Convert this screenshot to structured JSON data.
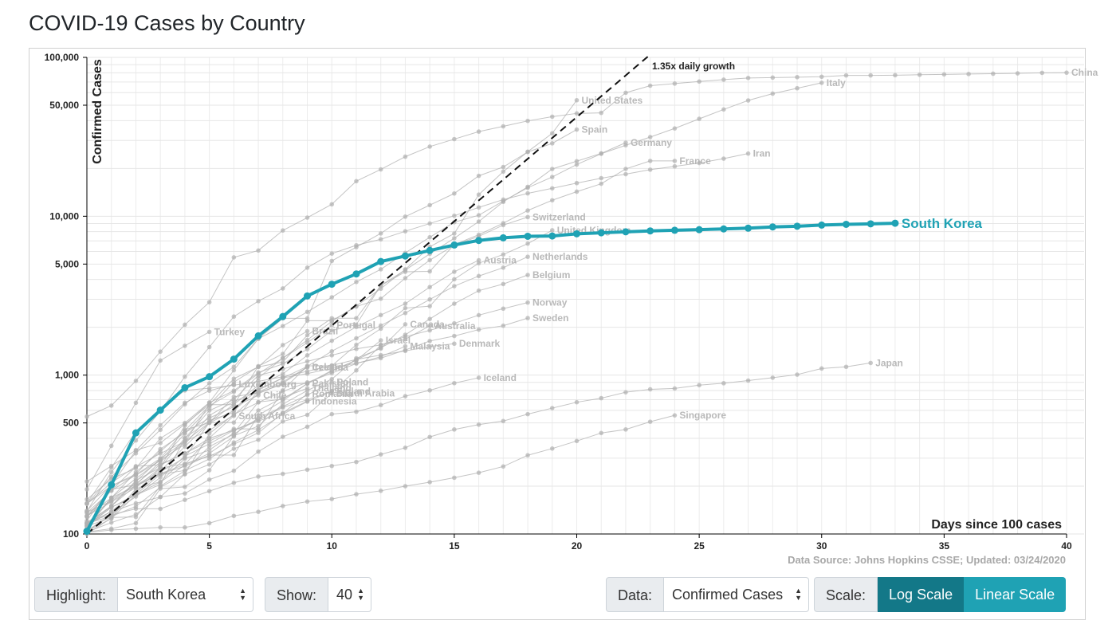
{
  "page": {
    "title": "COVID-19 Cases by Country"
  },
  "chart_data": {
    "type": "line",
    "title": "",
    "xlabel": "Days since 100 cases",
    "ylabel": "Confirmed Cases",
    "xlim": [
      0,
      40
    ],
    "ylim": [
      100,
      100000
    ],
    "y_scale": "log",
    "x_ticks": [
      0,
      5,
      10,
      15,
      20,
      25,
      30,
      35,
      40
    ],
    "y_ticks": [
      {
        "value": 100,
        "label": "100"
      },
      {
        "value": 500,
        "label": "500"
      },
      {
        "value": 1000,
        "label": "1,000"
      },
      {
        "value": 5000,
        "label": "5,000"
      },
      {
        "value": 10000,
        "label": "10,000"
      },
      {
        "value": 50000,
        "label": "50,000"
      },
      {
        "value": 100000,
        "label": "100,000"
      }
    ],
    "grid": true,
    "reference_line": {
      "label": "1.35x daily growth",
      "growth_rate": 1.35,
      "start_value": 100
    },
    "source_note": "Data Source: Johns Hopkins CSSE; Updated: 03/24/2020",
    "highlight_color": "#1fa2b4",
    "background_color": "#b0b0b0",
    "highlight": {
      "name": "South Korea",
      "values": [
        104,
        204,
        433,
        602,
        833,
        977,
        1261,
        1766,
        2337,
        3150,
        3736,
        4335,
        5186,
        5621,
        6088,
        6593,
        7041,
        7314,
        7478,
        7513,
        7755,
        7869,
        7979,
        8086,
        8162,
        8236,
        8320,
        8413,
        8565,
        8652,
        8799,
        8897,
        8961,
        9037
      ]
    },
    "series": [
      {
        "name": "China",
        "values": [
          548,
          643,
          920,
          1406,
          2075,
          2877,
          5509,
          6087,
          8141,
          9802,
          11891,
          16630,
          19716,
          23707,
          27440,
          30587,
          34110,
          36814,
          39829,
          42354,
          44386,
          44759,
          59895,
          66358,
          68413,
          70513,
          72434,
          74211,
          74619,
          75077,
          75550,
          77001,
          77022,
          77241,
          77754,
          78166,
          78600,
          78928,
          79356,
          79932,
          80136
        ]
      },
      {
        "name": "Italy",
        "values": [
          155,
          229,
          322,
          453,
          655,
          888,
          1128,
          1694,
          2036,
          2502,
          3089,
          3858,
          4636,
          5883,
          7375,
          9172,
          10149,
          12462,
          15113,
          17660,
          21157,
          24747,
          27980,
          31506,
          35713,
          41035,
          47021,
          53578,
          59138,
          63927,
          69176
        ]
      },
      {
        "name": "United States",
        "values": [
          118,
          149,
          217,
          262,
          402,
          518,
          583,
          959,
          1281,
          1663,
          2179,
          2727,
          3499,
          4632,
          6421,
          7786,
          13680,
          19101,
          25493,
          33276,
          53740
        ]
      },
      {
        "name": "Spain",
        "values": [
          165,
          222,
          259,
          400,
          500,
          673,
          1073,
          1695,
          2277,
          2277,
          5232,
          6391,
          7798,
          9942,
          11748,
          13910,
          17963,
          20410,
          25374,
          28768,
          35136
        ]
      },
      {
        "name": "Germany",
        "values": [
          130,
          159,
          196,
          262,
          482,
          670,
          799,
          1040,
          1176,
          1457,
          1908,
          2078,
          3675,
          4585,
          5795,
          7272,
          9257,
          12327,
          15320,
          19848,
          22213,
          24873,
          29056
        ]
      },
      {
        "name": "France",
        "values": [
          130,
          191,
          204,
          285,
          377,
          653,
          949,
          1126,
          1209,
          1784,
          2281,
          2281,
          3661,
          4469,
          4499,
          6633,
          7652,
          9043,
          10871,
          12612,
          14282,
          16018,
          19856,
          22304,
          22304
        ]
      },
      {
        "name": "Iran",
        "values": [
          139,
          245,
          388,
          593,
          978,
          1501,
          2336,
          2922,
          3513,
          4747,
          5823,
          6566,
          7161,
          8042,
          9000,
          10075,
          11364,
          12729,
          13938,
          14991,
          16169,
          17361,
          18407,
          19644,
          20610,
          21638,
          23049,
          24811
        ]
      },
      {
        "name": "Switzerland",
        "values": [
          214,
          268,
          337,
          374,
          491,
          652,
          652,
          1139,
          1359,
          2200,
          2200,
          2700,
          3028,
          4075,
          5294,
          6575,
          7474,
          8795,
          9877
        ]
      },
      {
        "name": "United Kingdom",
        "values": [
          116,
          164,
          207,
          274,
          322,
          384,
          459,
          459,
          802,
          1144,
          1145,
          1551,
          1960,
          2642,
          2716,
          4014,
          5067,
          5745,
          6726,
          8164
        ]
      },
      {
        "name": "Austria",
        "values": [
          104,
          131,
          182,
          246,
          302,
          504,
          655,
          860,
          1018,
          1332,
          1646,
          2013,
          2388,
          2814,
          3582,
          4474,
          5283
        ]
      },
      {
        "name": "Netherlands",
        "values": [
          128,
          188,
          265,
          321,
          382,
          503,
          503,
          804,
          959,
          1135,
          1413,
          1705,
          2051,
          2460,
          2994,
          3631,
          4204,
          4749,
          5560
        ]
      },
      {
        "name": "Belgium",
        "values": [
          109,
          169,
          200,
          239,
          267,
          314,
          314,
          559,
          689,
          886,
          1058,
          1243,
          1486,
          1795,
          2257,
          2815,
          3401,
          3743,
          4269
        ]
      },
      {
        "name": "Norway",
        "values": [
          113,
          147,
          176,
          205,
          400,
          598,
          702,
          996,
          1090,
          1221,
          1333,
          1463,
          1550,
          1746,
          1914,
          2118,
          2385,
          2621,
          2863
        ]
      },
      {
        "name": "Sweden",
        "values": [
          137,
          161,
          203,
          248,
          355,
          500,
          599,
          814,
          961,
          1022,
          1103,
          1190,
          1279,
          1439,
          1639,
          1763,
          1934,
          2046,
          2286
        ]
      },
      {
        "name": "Canada",
        "values": [
          103,
          108,
          117,
          193,
          198,
          252,
          415,
          478,
          657,
          800,
          943,
          1277,
          1469,
          2088
        ]
      },
      {
        "name": "Australia",
        "values": [
          112,
          127,
          128,
          200,
          250,
          297,
          377,
          452,
          568,
          681,
          791,
          1071,
          1549,
          1682,
          2044
        ]
      },
      {
        "name": "Israel",
        "values": [
          100,
          126,
          193,
          213,
          298,
          337,
          433,
          677,
          705,
          883,
          1071,
          1238,
          1656
        ]
      },
      {
        "name": "Denmark",
        "values": [
          156,
          262,
          442,
          615,
          801,
          827,
          864,
          914,
          977,
          1057,
          1151,
          1255,
          1337,
          1420,
          1514,
          1577
        ]
      },
      {
        "name": "Malaysia",
        "values": [
          117,
          129,
          149,
          197,
          238,
          428,
          566,
          673,
          790,
          900,
          1030,
          1183,
          1306,
          1518
        ]
      },
      {
        "name": "Portugal",
        "values": [
          112,
          169,
          245,
          331,
          448,
          642,
          785,
          1020,
          1280,
          1600,
          2060
        ]
      },
      {
        "name": "Brazil",
        "values": [
          121,
          200,
          234,
          291,
          428,
          621,
          904,
          1128,
          1546,
          1891
        ]
      },
      {
        "name": "Ireland",
        "values": [
          129,
          169,
          223,
          292,
          366,
          557,
          683,
          785,
          906,
          1125
        ]
      },
      {
        "name": "Czechia",
        "values": [
          116,
          150,
          214,
          298,
          383,
          450,
          560,
          765,
          889,
          1120
        ]
      },
      {
        "name": "Luxembourg",
        "values": [
          140,
          203,
          335,
          484,
          670,
          798,
          875
        ]
      },
      {
        "name": "Chile",
        "values": [
          155,
          201,
          238,
          342,
          434,
          537,
          632,
          746
        ]
      },
      {
        "name": "Poland",
        "values": [
          104,
          125,
          177,
          238,
          251,
          355,
          425,
          536,
          634,
          749,
          901
        ]
      },
      {
        "name": "Romania",
        "values": [
          113,
          139,
          184,
          260,
          277,
          308,
          367,
          433,
          576,
          762
        ]
      },
      {
        "name": "Thailand",
        "values": [
          114,
          147,
          177,
          212,
          272,
          322,
          411,
          599,
          721,
          827
        ]
      },
      {
        "name": "Saudi Arabia",
        "values": [
          103,
          118,
          133,
          171,
          238,
          274,
          344,
          392,
          511,
          562,
          767
        ]
      },
      {
        "name": "Pakistan",
        "values": [
          136,
          187,
          236,
          299,
          454,
          501,
          730,
          776,
          875,
          887
        ]
      },
      {
        "name": "Indonesia",
        "values": [
          117,
          134,
          172,
          227,
          309,
          369,
          450,
          514,
          579,
          686
        ]
      },
      {
        "name": "Finland",
        "values": [
          155,
          210,
          267,
          272,
          322,
          400,
          450,
          523,
          626,
          700,
          792
        ]
      },
      {
        "name": "Iceland",
        "values": [
          117,
          138,
          156,
          171,
          180,
          220,
          250,
          330,
          409,
          473,
          568,
          588,
          648,
          737,
          802,
          890,
          963
        ]
      },
      {
        "name": "South Africa",
        "values": [
          116,
          150,
          202,
          240,
          274,
          402,
          554
        ]
      },
      {
        "name": "Turkey",
        "values": [
          191,
          359,
          670,
          1236,
          1529,
          1872
        ]
      },
      {
        "name": "Japan",
        "values": [
          105,
          132,
          144,
          144,
          164,
          186,
          210,
          230,
          239,
          254,
          268,
          284,
          317,
          349,
          408,
          455,
          488,
          514,
          568,
          620,
          675,
          716,
          780,
          814,
          824,
          865,
          889,
          924,
          963,
          1007,
          1101,
          1128,
          1193
        ]
      },
      {
        "name": "Singapore",
        "values": [
          102,
          106,
          108,
          110,
          110,
          117,
          130,
          138,
          150,
          160,
          166,
          178,
          187,
          200,
          212,
          226,
          243,
          266,
          313,
          345,
          385,
          432,
          455,
          509,
          558
        ]
      }
    ]
  },
  "controls": {
    "highlight_label": "Highlight:",
    "highlight_value": "South Korea",
    "show_label": "Show:",
    "show_value": "40",
    "data_label": "Data:",
    "data_value": "Confirmed Cases",
    "scale_label": "Scale:",
    "log_scale_label": "Log Scale",
    "linear_scale_label": "Linear Scale"
  }
}
